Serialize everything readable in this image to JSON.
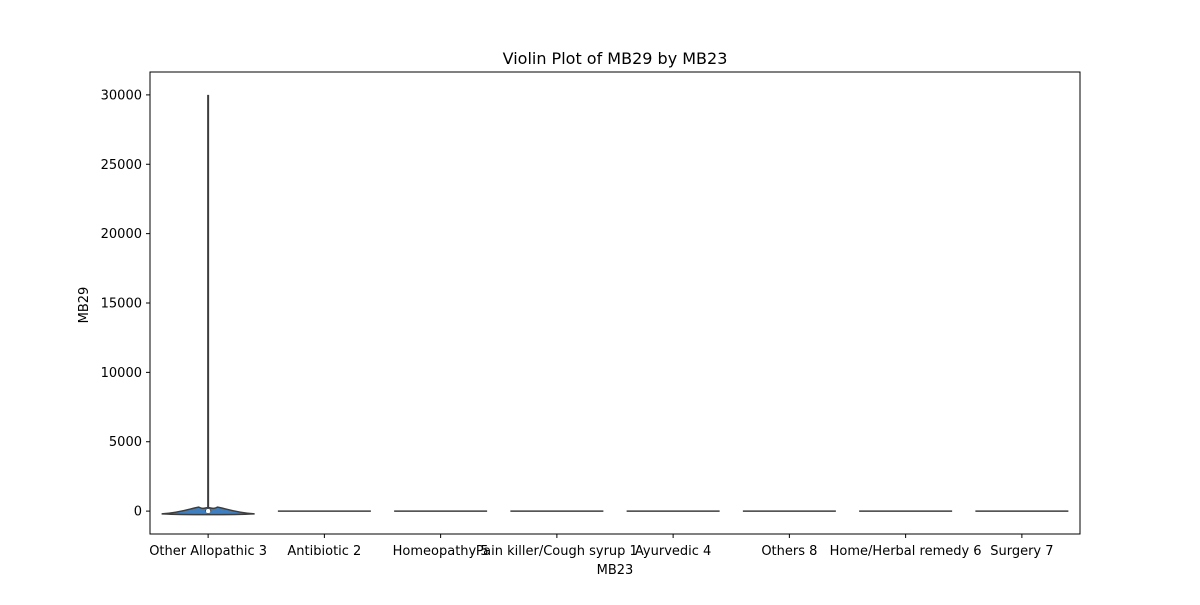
{
  "chart_data": {
    "type": "violin",
    "title": "Violin Plot of MB29 by MB23",
    "xlabel": "MB23",
    "ylabel": "MB29",
    "categories": [
      "Other Allopathic 3",
      "Antibiotic 2",
      "Homeopathy 5",
      "Pain killer/Cough syrup 1",
      "Ayurvedic 4",
      "Others 8",
      "Home/Herbal remedy 6",
      "Surgery 7"
    ],
    "y_ticks": [
      0,
      5000,
      10000,
      15000,
      20000,
      25000,
      30000
    ],
    "ylim": [
      -1650,
      31650
    ],
    "violins": [
      {
        "category": "Other Allopathic 3",
        "min": -200,
        "max": 30000,
        "median": 0,
        "q1": 0,
        "q3": 100,
        "body_top": 250,
        "body_bottom": -200
      },
      {
        "category": "Antibiotic 2",
        "min": 0,
        "max": 0,
        "median": 0
      },
      {
        "category": "Homeopathy 5",
        "min": 0,
        "max": 0,
        "median": 0
      },
      {
        "category": "Pain killer/Cough syrup 1",
        "min": 0,
        "max": 0,
        "median": 0
      },
      {
        "category": "Ayurvedic 4",
        "min": 0,
        "max": 0,
        "median": 0
      },
      {
        "category": "Others 8",
        "min": 0,
        "max": 0,
        "median": 0
      },
      {
        "category": "Home/Herbal remedy 6",
        "min": 0,
        "max": 0,
        "median": 0
      },
      {
        "category": "Surgery 7",
        "min": 0,
        "max": 0,
        "median": 0
      }
    ],
    "grid": false,
    "colors": {
      "violin_fill": "#3f7fbf",
      "violin_edge": "#3d3d3d",
      "axis": "#000000"
    }
  }
}
